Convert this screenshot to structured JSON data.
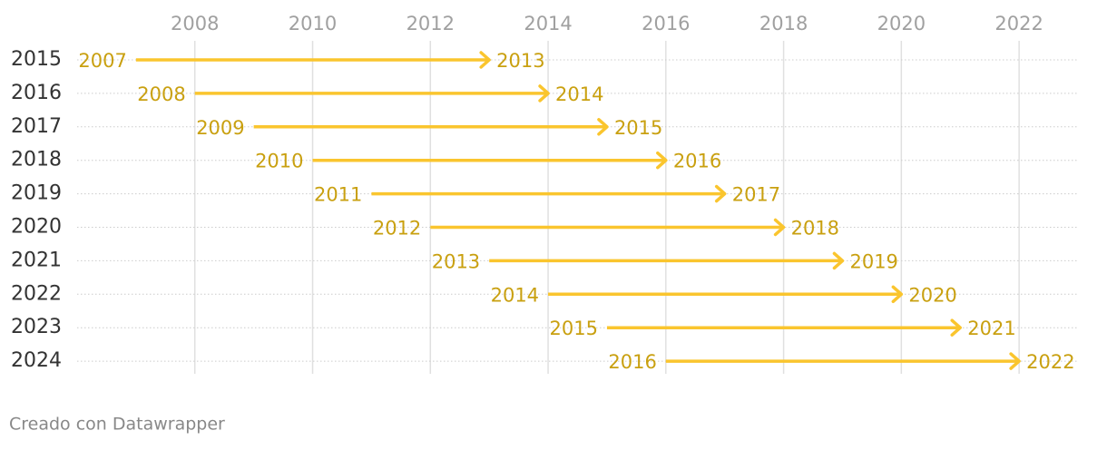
{
  "chart_data": {
    "type": "arrow",
    "categories": [
      "2015",
      "2016",
      "2017",
      "2018",
      "2019",
      "2020",
      "2021",
      "2022",
      "2023",
      "2024"
    ],
    "start": [
      2007,
      2008,
      2009,
      2010,
      2011,
      2012,
      2013,
      2014,
      2015,
      2016
    ],
    "end": [
      2013,
      2014,
      2015,
      2016,
      2017,
      2018,
      2019,
      2020,
      2021,
      2022
    ],
    "color": "#fac52e",
    "label_color": "#c9a010",
    "xlim": [
      2006,
      2023
    ],
    "xticks": [
      2008,
      2010,
      2012,
      2014,
      2016,
      2018,
      2020,
      2022
    ],
    "grid": true,
    "footer": "Creado con Datawrapper"
  }
}
